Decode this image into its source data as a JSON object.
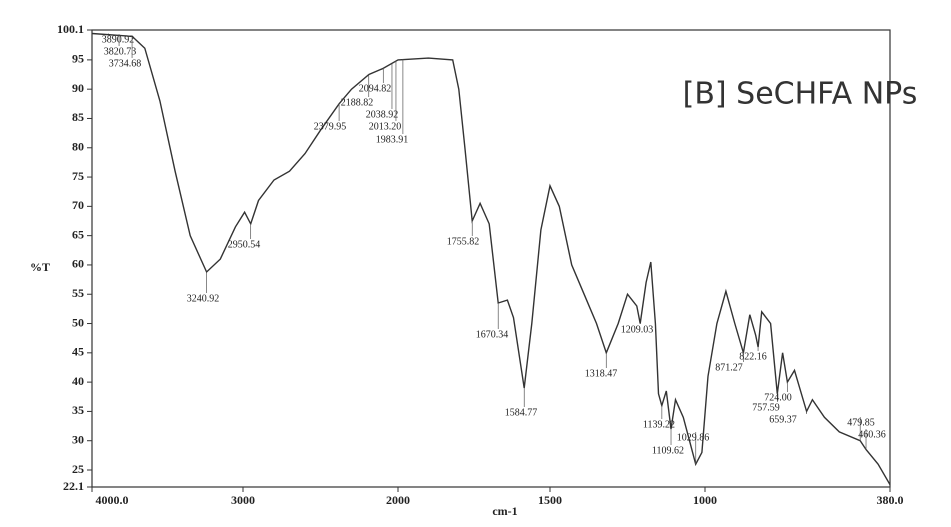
{
  "chart_data": {
    "type": "line",
    "title": "[B] SeCHFA NPs",
    "x_label": "cm-1",
    "y_label": "%T",
    "xlim": [
      4000,
      380
    ],
    "ylim": [
      22.1,
      100.1
    ],
    "xticks": [
      {
        "value": 4000,
        "label": "4000.0"
      },
      3000,
      2000,
      1500,
      1000,
      {
        "value": 380,
        "label": "380.0"
      }
    ],
    "yticks": [
      22.1,
      25,
      30,
      35,
      40,
      45,
      50,
      55,
      60,
      65,
      70,
      75,
      80,
      85,
      90,
      95,
      100.1
    ],
    "series": [
      {
        "name": "%T",
        "color": "#333333",
        "x": [
          4000,
          3734,
          3650,
          3550,
          3450,
          3350,
          3240.92,
          3150,
          3050,
          2990,
          2950.54,
          2900,
          2800,
          2700,
          2600,
          2500,
          2379.95,
          2300,
          2188,
          2100,
          2000,
          1900,
          1820,
          1800,
          1780,
          1755.82,
          1730,
          1700,
          1670.34,
          1640,
          1620,
          1584.77,
          1560,
          1530,
          1500,
          1470,
          1430,
          1390,
          1350,
          1318.47,
          1280,
          1250,
          1220,
          1209.03,
          1190,
          1175,
          1160,
          1150,
          1139.22,
          1125,
          1109.62,
          1095,
          1070,
          1050,
          1029.86,
          1010,
          990,
          960,
          930,
          900,
          871.27,
          850,
          830,
          822.16,
          810,
          780,
          757.59,
          740,
          724,
          700,
          659.37,
          640,
          600,
          550,
          479.85,
          460.36,
          420,
          380
        ],
        "values": [
          99.5,
          99,
          97,
          88,
          76,
          65,
          58.8,
          61,
          66.5,
          69,
          67,
          71,
          74.5,
          76,
          79,
          83,
          87.5,
          90,
          92.5,
          93.5,
          95,
          95.3,
          95,
          90,
          80,
          67.5,
          70.5,
          67,
          53.5,
          54,
          51,
          39,
          50,
          66,
          73.5,
          70,
          60,
          55,
          50,
          45,
          50,
          55,
          53,
          50,
          57,
          60.5,
          50,
          38,
          36,
          38.5,
          32,
          37,
          34,
          30,
          26,
          28,
          41,
          50,
          55.5,
          50,
          45,
          51.5,
          48,
          46,
          52,
          50,
          38,
          45,
          40,
          42,
          35,
          37,
          34,
          31.5,
          30,
          28.5,
          26,
          22.5
        ]
      }
    ],
    "peaks": [
      {
        "x": 3890.92,
        "y": 99.5,
        "label": "3890.92"
      },
      {
        "x": 3820.73,
        "y": 99.4,
        "label": "3820.73"
      },
      {
        "x": 3734.68,
        "y": 99,
        "label": "3734.68"
      },
      {
        "x": 3240.92,
        "y": 58.8,
        "label": "3240.92"
      },
      {
        "x": 2950.54,
        "y": 67,
        "label": "2950.54"
      },
      {
        "x": 2379.95,
        "y": 87.5,
        "label": "2379.95"
      },
      {
        "x": 2188.82,
        "y": 92.5,
        "label": "2188.82"
      },
      {
        "x": 2094.82,
        "y": 93.6,
        "label": "2094.82"
      },
      {
        "x": 2038.92,
        "y": 94.3,
        "label": "2038.92"
      },
      {
        "x": 2013.2,
        "y": 94.8,
        "label": "2013.20"
      },
      {
        "x": 1983.91,
        "y": 95.1,
        "label": "1983.91"
      },
      {
        "x": 1755.82,
        "y": 67.5,
        "label": "1755.82"
      },
      {
        "x": 1670.34,
        "y": 53.5,
        "label": "1670.34"
      },
      {
        "x": 1584.77,
        "y": 39,
        "label": "1584.77"
      },
      {
        "x": 1318.47,
        "y": 45,
        "label": "1318.47"
      },
      {
        "x": 1209.03,
        "y": 50,
        "label": "1209.03"
      },
      {
        "x": 1139.22,
        "y": 36,
        "label": "1139.22"
      },
      {
        "x": 1109.62,
        "y": 32,
        "label": "1109.62"
      },
      {
        "x": 1029.86,
        "y": 26,
        "label": "1029.86"
      },
      {
        "x": 871.27,
        "y": 45,
        "label": "871.27"
      },
      {
        "x": 822.16,
        "y": 46,
        "label": "822.16"
      },
      {
        "x": 757.59,
        "y": 38,
        "label": "757.59"
      },
      {
        "x": 724,
        "y": 40,
        "label": "724.00"
      },
      {
        "x": 659.37,
        "y": 35,
        "label": "659.37"
      },
      {
        "x": 479.85,
        "y": 30,
        "label": "479.85"
      },
      {
        "x": 460.36,
        "y": 28.5,
        "label": "460.36"
      }
    ]
  }
}
